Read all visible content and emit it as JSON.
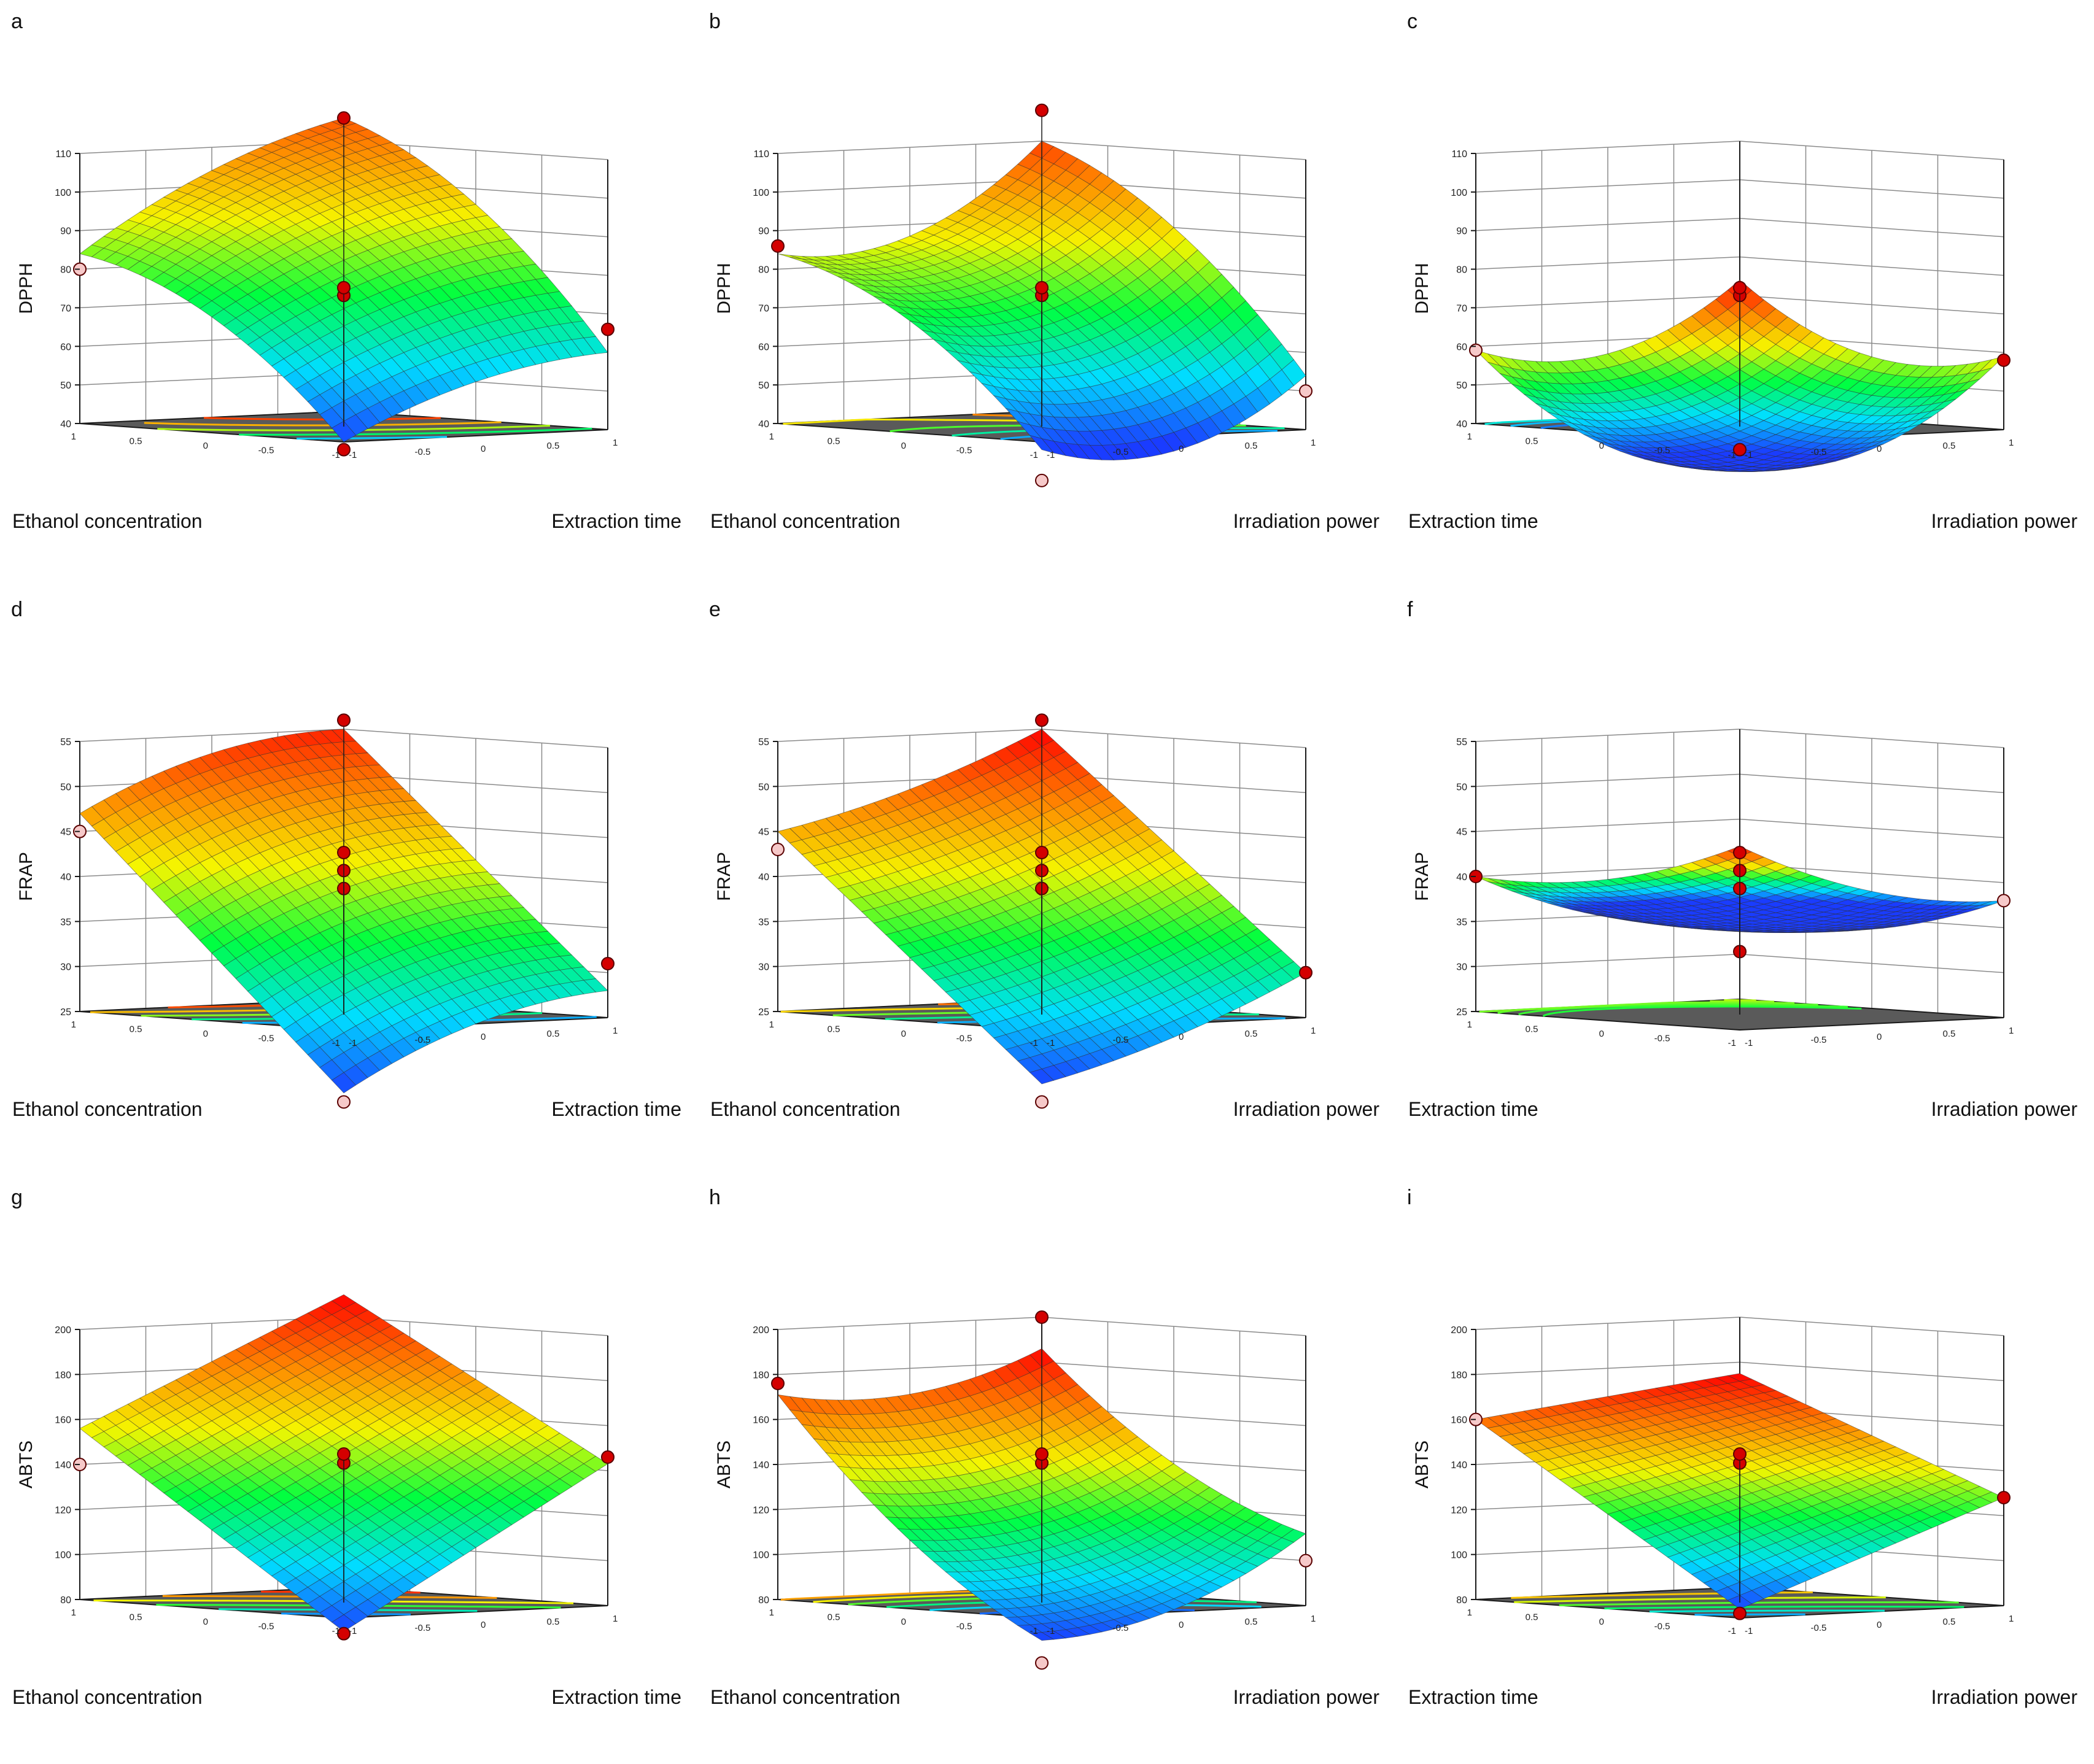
{
  "colors": {
    "floor": "#5a5a5a",
    "frame": "#1a1a1a",
    "grid": "#8a8a8a",
    "mesh": "#2b2b2b",
    "design_point_red": "#d40000",
    "design_point_pink": "#f6c9c9",
    "colormap": [
      "#1a3cff",
      "#00dfff",
      "#00ff40",
      "#f5f500",
      "#ff8000",
      "#ff0000"
    ]
  },
  "chart_data": [
    {
      "type": "surface",
      "panel_label": "a",
      "zlabel": "DPPH",
      "xlabel": "Ethanol concentration",
      "ylabel": "Extraction time",
      "zlim": [
        40,
        110
      ],
      "z_ticks": [
        "40",
        "50",
        "60",
        "70",
        "80",
        "90",
        "100",
        "110"
      ],
      "x_ticks": [
        "-1",
        "-0.5",
        "0",
        "0.5",
        "1"
      ],
      "y_ticks": [
        "-1",
        "-0.5",
        "0",
        "0.5",
        "1"
      ],
      "corner_values": {
        "x-1_y-1": 40,
        "x1_y-1": 84,
        "x1_y1": 116,
        "x-1_y1": 60
      },
      "curvature": {
        "x": 8,
        "y": 4,
        "xy": 0
      },
      "design_points": {
        "red": [
          [
            -1,
            1,
            66
          ],
          [
            1,
            1,
            116
          ],
          [
            -1,
            -1,
            38
          ],
          [
            0,
            0,
            74
          ],
          [
            0,
            0,
            76
          ]
        ],
        "pink": [
          [
            1,
            -1,
            80
          ]
        ]
      }
    },
    {
      "type": "surface",
      "panel_label": "b",
      "zlabel": "DPPH",
      "xlabel": "Ethanol concentration",
      "ylabel": "Irradiation power",
      "zlim": [
        40,
        110
      ],
      "z_ticks": [
        "40",
        "50",
        "60",
        "70",
        "80",
        "90",
        "100",
        "110"
      ],
      "x_ticks": [
        "-1",
        "-0.5",
        "0",
        "0.5",
        "1"
      ],
      "y_ticks": [
        "-1",
        "-0.5",
        "0",
        "0.5",
        "1"
      ],
      "corner_values": {
        "x-1_y-1": 38,
        "x1_y-1": 84,
        "x1_y1": 110,
        "x-1_y1": 54
      },
      "curvature": {
        "x": 8,
        "y": -10,
        "xy": 0
      },
      "design_points": {
        "red": [
          [
            1,
            -1,
            86
          ],
          [
            1,
            1,
            118
          ],
          [
            0,
            0,
            74
          ],
          [
            0,
            0,
            76
          ]
        ],
        "pink": [
          [
            -1,
            1,
            50
          ],
          [
            -1,
            -1,
            30
          ]
        ]
      }
    },
    {
      "type": "surface",
      "panel_label": "c",
      "zlabel": "DPPH",
      "xlabel": "Extraction time",
      "ylabel": "Irradiation power",
      "zlim": [
        40,
        110
      ],
      "z_ticks": [
        "40",
        "50",
        "60",
        "70",
        "80",
        "90",
        "100",
        "110"
      ],
      "x_ticks": [
        "-1",
        "-0.5",
        "0",
        "0.5",
        "1"
      ],
      "y_ticks": [
        "-1",
        "-0.5",
        "0",
        "0.5",
        "1"
      ],
      "corner_values": {
        "x-1_y-1": 34,
        "x1_y-1": 59,
        "x1_y1": 74,
        "x-1_y1": 59
      },
      "curvature": {
        "x": -10,
        "y": -10,
        "xy": 0
      },
      "design_points": {
        "red": [
          [
            -1,
            1,
            58
          ],
          [
            -1,
            -1,
            38
          ],
          [
            0,
            0,
            74
          ],
          [
            0,
            0,
            76
          ]
        ],
        "pink": [
          [
            1,
            -1,
            59
          ]
        ]
      }
    },
    {
      "type": "surface",
      "panel_label": "d",
      "zlabel": "FRAP",
      "xlabel": "Ethanol concentration",
      "ylabel": "Extraction time",
      "zlim": [
        25,
        55
      ],
      "z_ticks": [
        "25",
        "30",
        "35",
        "40",
        "45",
        "50",
        "55"
      ],
      "x_ticks": [
        "-1",
        "-0.5",
        "0",
        "0.5",
        "1"
      ],
      "y_ticks": [
        "-1",
        "-0.5",
        "0",
        "0.5",
        "1"
      ],
      "corner_values": {
        "x-1_y-1": 18,
        "x1_y-1": 47,
        "x1_y1": 55,
        "x-1_y1": 28
      },
      "curvature": {
        "x": 0,
        "y": 2,
        "xy": 0
      },
      "design_points": {
        "red": [
          [
            -1,
            1,
            31
          ],
          [
            1,
            1,
            56
          ],
          [
            0,
            0,
            39
          ],
          [
            0,
            0,
            41
          ],
          [
            0,
            0,
            43
          ]
        ],
        "pink": [
          [
            1,
            -1,
            45
          ],
          [
            -1,
            -1,
            17
          ]
        ]
      }
    },
    {
      "type": "surface",
      "panel_label": "e",
      "zlabel": "FRAP",
      "xlabel": "Ethanol concentration",
      "ylabel": "Irradiation power",
      "zlim": [
        25,
        55
      ],
      "z_ticks": [
        "25",
        "30",
        "35",
        "40",
        "45",
        "50",
        "55"
      ],
      "x_ticks": [
        "-1",
        "-0.5",
        "0",
        "0.5",
        "1"
      ],
      "y_ticks": [
        "-1",
        "-0.5",
        "0",
        "0.5",
        "1"
      ],
      "corner_values": {
        "x-1_y-1": 19,
        "x1_y-1": 45,
        "x1_y1": 55,
        "x-1_y1": 30
      },
      "curvature": {
        "x": 0,
        "y": -1,
        "xy": 0
      },
      "design_points": {
        "red": [
          [
            -1,
            1,
            30
          ],
          [
            1,
            1,
            56
          ],
          [
            0,
            0,
            39
          ],
          [
            0,
            0,
            41
          ],
          [
            0,
            0,
            43
          ]
        ],
        "pink": [
          [
            1,
            -1,
            43
          ],
          [
            -1,
            -1,
            17
          ]
        ]
      }
    },
    {
      "type": "surface",
      "panel_label": "f",
      "zlabel": "FRAP",
      "xlabel": "Extraction time",
      "ylabel": "Irradiation power",
      "zlim": [
        25,
        55
      ],
      "z_ticks": [
        "25",
        "30",
        "35",
        "40",
        "45",
        "50",
        "55"
      ],
      "x_ticks": [
        "-1",
        "-0.5",
        "0",
        "0.5",
        "1"
      ],
      "y_ticks": [
        "-1",
        "-0.5",
        "0",
        "0.5",
        "1"
      ],
      "corner_values": {
        "x-1_y-1": 37,
        "x1_y-1": 40,
        "x1_y1": 42,
        "x-1_y1": 38
      },
      "curvature": {
        "x": -2,
        "y": -2,
        "xy": 0
      },
      "design_points": {
        "red": [
          [
            1,
            -1,
            40
          ],
          [
            0,
            0,
            32
          ],
          [
            0,
            0,
            39
          ],
          [
            0,
            0,
            41
          ],
          [
            0,
            0,
            43
          ]
        ],
        "pink": [
          [
            -1,
            1,
            38
          ]
        ]
      }
    },
    {
      "type": "surface",
      "panel_label": "g",
      "zlabel": "ABTS",
      "xlabel": "Ethanol concentration",
      "ylabel": "Extraction time",
      "zlim": [
        80,
        200
      ],
      "z_ticks": [
        "80",
        "100",
        "120",
        "140",
        "160",
        "180",
        "200"
      ],
      "x_ticks": [
        "-1",
        "-0.5",
        "0",
        "0.5",
        "1"
      ],
      "y_ticks": [
        "-1",
        "-0.5",
        "0",
        "0.5",
        "1"
      ],
      "corner_values": {
        "x-1_y-1": 74,
        "x1_y-1": 156,
        "x1_y1": 210,
        "x-1_y1": 143
      },
      "curvature": {
        "x": 0,
        "y": 0,
        "xy": 0
      },
      "design_points": {
        "red": [
          [
            -1,
            1,
            146
          ],
          [
            -1,
            -1,
            73
          ],
          [
            0,
            0,
            142
          ],
          [
            0,
            0,
            146
          ]
        ],
        "pink": [
          [
            1,
            -1,
            140
          ]
        ]
      }
    },
    {
      "type": "surface",
      "panel_label": "h",
      "zlabel": "ABTS",
      "xlabel": "Ethanol concentration",
      "ylabel": "Irradiation power",
      "zlim": [
        80,
        200
      ],
      "z_ticks": [
        "80",
        "100",
        "120",
        "140",
        "160",
        "180",
        "200"
      ],
      "x_ticks": [
        "-1",
        "-0.5",
        "0",
        "0.5",
        "1"
      ],
      "y_ticks": [
        "-1",
        "-0.5",
        "0",
        "0.5",
        "1"
      ],
      "corner_values": {
        "x-1_y-1": 70,
        "x1_y-1": 171,
        "x1_y1": 186,
        "x-1_y1": 112
      },
      "curvature": {
        "x": -10,
        "y": -10,
        "xy": 0
      },
      "design_points": {
        "red": [
          [
            1,
            -1,
            176
          ],
          [
            1,
            1,
            200
          ],
          [
            0,
            0,
            142
          ],
          [
            0,
            0,
            146
          ]
        ],
        "pink": [
          [
            -1,
            1,
            100
          ],
          [
            -1,
            -1,
            60
          ]
        ]
      }
    },
    {
      "type": "surface",
      "panel_label": "i",
      "zlabel": "ABTS",
      "xlabel": "Extraction time",
      "ylabel": "Irradiation power",
      "zlim": [
        80,
        200
      ],
      "z_ticks": [
        "80",
        "100",
        "120",
        "140",
        "160",
        "180",
        "200"
      ],
      "x_ticks": [
        "-1",
        "-0.5",
        "0",
        "0.5",
        "1"
      ],
      "y_ticks": [
        "-1",
        "-0.5",
        "0",
        "0.5",
        "1"
      ],
      "corner_values": {
        "x-1_y-1": 84,
        "x1_y-1": 160,
        "x1_y1": 175,
        "x-1_y1": 128
      },
      "curvature": {
        "x": 0,
        "y": 0,
        "xy": 0
      },
      "design_points": {
        "red": [
          [
            -1,
            1,
            128
          ],
          [
            -1,
            -1,
            82
          ],
          [
            0,
            0,
            142
          ],
          [
            0,
            0,
            146
          ]
        ],
        "pink": [
          [
            1,
            -1,
            160
          ]
        ]
      }
    }
  ]
}
